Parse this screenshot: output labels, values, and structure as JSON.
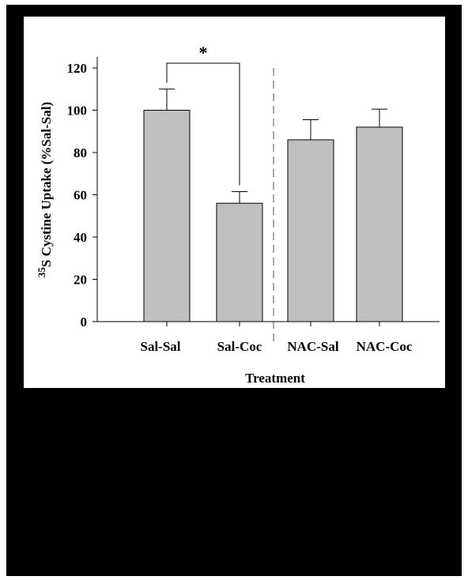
{
  "chart_data": {
    "type": "bar",
    "categories": [
      "Sal-Sal",
      "Sal-Coc",
      "NAC-Sal",
      "NAC-Coc"
    ],
    "values": [
      100,
      56,
      86,
      92
    ],
    "errors": [
      10,
      5.5,
      9.5,
      8.5
    ],
    "yticks": [
      0,
      20,
      40,
      60,
      80,
      100,
      120
    ],
    "ylim": [
      0,
      120
    ],
    "ylabel_prefix": "35",
    "ylabel_main": "S Cystine Uptake (%Sal-Sal)",
    "xlabel": "Treatment",
    "significance": {
      "from": 0,
      "to": 1,
      "label": "*"
    },
    "bar_color": "#c0c0c0"
  }
}
